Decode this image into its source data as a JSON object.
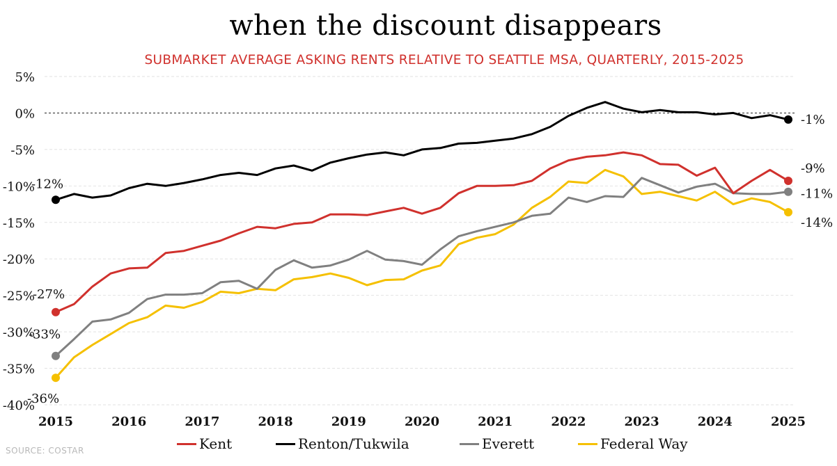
{
  "title": "when the discount disappears",
  "subtitle": "SUBMARKET AVERAGE ASKING RENTS RELATIVE TO SEATTLE MSA, QUARTERLY, 2015-2025",
  "source": "SOURCE: COSTAR",
  "chart_data": {
    "type": "line",
    "x_tick_labels": [
      "2015",
      "2016",
      "2017",
      "2018",
      "2019",
      "2020",
      "2021",
      "2022",
      "2023",
      "2024",
      "2025"
    ],
    "y_tick_labels": [
      "5%",
      "0%",
      "-5%",
      "-10%",
      "-15%",
      "-20%",
      "-25%",
      "-30%",
      "-35%",
      "-40%"
    ],
    "y_ticks": [
      5,
      0,
      -5,
      -10,
      -15,
      -20,
      -25,
      -30,
      -35,
      -40
    ],
    "xlim": [
      2015,
      2025
    ],
    "ylim": [
      -40,
      5
    ],
    "grid": true,
    "zero_line": "dashed",
    "legend_position": "bottom",
    "colors": {
      "Kent": "#d0312d",
      "Renton/Tukwila": "#000000",
      "Everett": "#808080",
      "Federal Way": "#f5c000"
    },
    "series": [
      {
        "name": "Kent",
        "color": "#d0312d",
        "start_label": "-27%",
        "end_label": "-9%",
        "values": [
          -27.3,
          -26.2,
          -23.8,
          -22.0,
          -21.3,
          -21.2,
          -19.2,
          -18.9,
          -18.2,
          -17.5,
          -16.5,
          -15.6,
          -15.8,
          -15.2,
          -15.0,
          -13.9,
          -13.9,
          -14.0,
          -13.5,
          -13.0,
          -13.8,
          -13.0,
          -11.0,
          -10.0,
          -10.0,
          -9.9,
          -9.3,
          -7.6,
          -6.5,
          -6.0,
          -5.8,
          -5.4,
          -5.8,
          -7.0,
          -7.1,
          -8.6,
          -7.5,
          -11.0,
          -9.3,
          -7.8,
          -9.3
        ]
      },
      {
        "name": "Renton/Tukwila",
        "color": "#000000",
        "start_label": "-12%",
        "end_label": "-1%",
        "values": [
          -11.9,
          -11.1,
          -11.6,
          -11.3,
          -10.3,
          -9.7,
          -10.0,
          -9.6,
          -9.1,
          -8.5,
          -8.2,
          -8.5,
          -7.6,
          -7.2,
          -7.9,
          -6.8,
          -6.2,
          -5.7,
          -5.4,
          -5.8,
          -5.0,
          -4.8,
          -4.2,
          -4.1,
          -3.8,
          -3.5,
          -2.9,
          -1.9,
          -0.4,
          0.7,
          1.5,
          0.6,
          0.1,
          0.4,
          0.1,
          0.1,
          -0.2,
          0.0,
          -0.7,
          -0.3,
          -0.9
        ]
      },
      {
        "name": "Everett",
        "color": "#808080",
        "start_label": "-33%",
        "end_label": "-11%",
        "values": [
          -33.3,
          -31.0,
          -28.6,
          -28.3,
          -27.4,
          -25.5,
          -24.9,
          -24.9,
          -24.7,
          -23.2,
          -23.0,
          -24.1,
          -21.5,
          -20.2,
          -21.2,
          -20.9,
          -20.1,
          -18.9,
          -20.1,
          -20.3,
          -20.8,
          -18.7,
          -16.9,
          -16.2,
          -15.6,
          -15.0,
          -14.1,
          -13.8,
          -11.6,
          -12.2,
          -11.4,
          -11.5,
          -8.9,
          -9.9,
          -10.9,
          -10.1,
          -9.7,
          -11.0,
          -11.1,
          -11.1,
          -10.8
        ]
      },
      {
        "name": "Federal Way",
        "color": "#f5c000",
        "start_label": "-36%",
        "end_label": "-14%",
        "values": [
          -36.3,
          -33.5,
          -31.8,
          -30.3,
          -28.8,
          -28.0,
          -26.4,
          -26.7,
          -25.9,
          -24.5,
          -24.7,
          -24.1,
          -24.3,
          -22.8,
          -22.5,
          -22.0,
          -22.6,
          -23.6,
          -22.9,
          -22.8,
          -21.6,
          -20.9,
          -18.0,
          -17.1,
          -16.6,
          -15.3,
          -13.0,
          -11.5,
          -9.4,
          -9.6,
          -7.8,
          -8.7,
          -11.1,
          -10.8,
          -11.4,
          -12.0,
          -10.8,
          -12.5,
          -11.7,
          -12.2,
          -13.6
        ]
      }
    ]
  },
  "legend": [
    {
      "label": "Kent",
      "color": "#d0312d"
    },
    {
      "label": "Renton/Tukwila",
      "color": "#000000"
    },
    {
      "label": "Everett",
      "color": "#808080"
    },
    {
      "label": "Federal Way",
      "color": "#f5c000"
    }
  ]
}
